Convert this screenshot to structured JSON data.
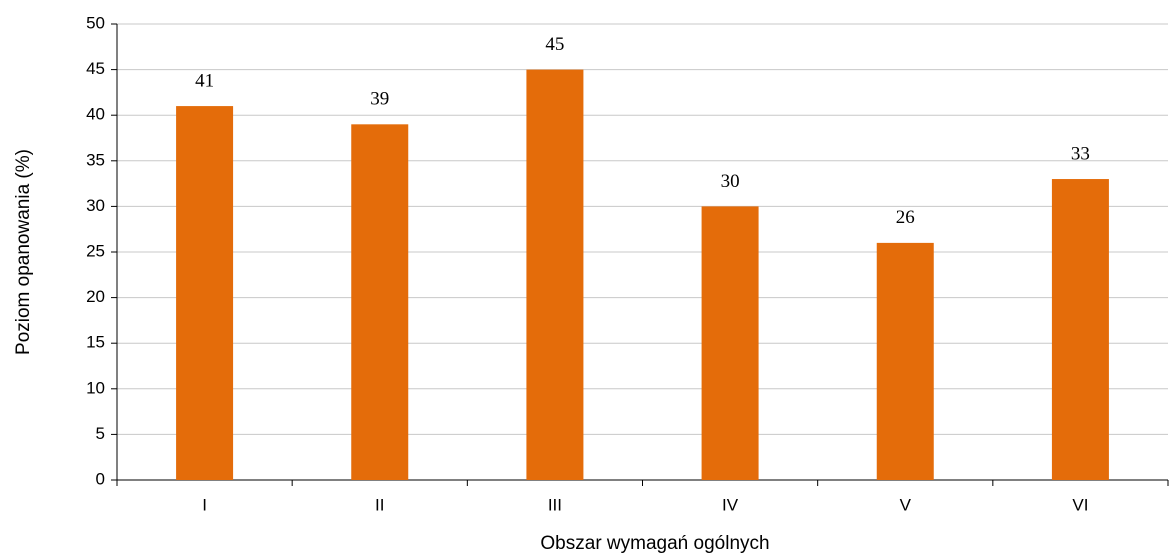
{
  "chart_data": {
    "type": "bar",
    "x_label": "Obszar wymagań ogólnych",
    "y_label": "Poziom opanowania (%)",
    "categories": [
      "I",
      "II",
      "III",
      "IV",
      "V",
      "VI"
    ],
    "values": [
      41,
      39,
      45,
      30,
      26,
      33
    ],
    "color": "#e46c0a",
    "ylim": [
      0,
      50
    ],
    "yticks": [
      0,
      5,
      10,
      15,
      20,
      25,
      30,
      35,
      40,
      45,
      50
    ],
    "grid": true
  }
}
